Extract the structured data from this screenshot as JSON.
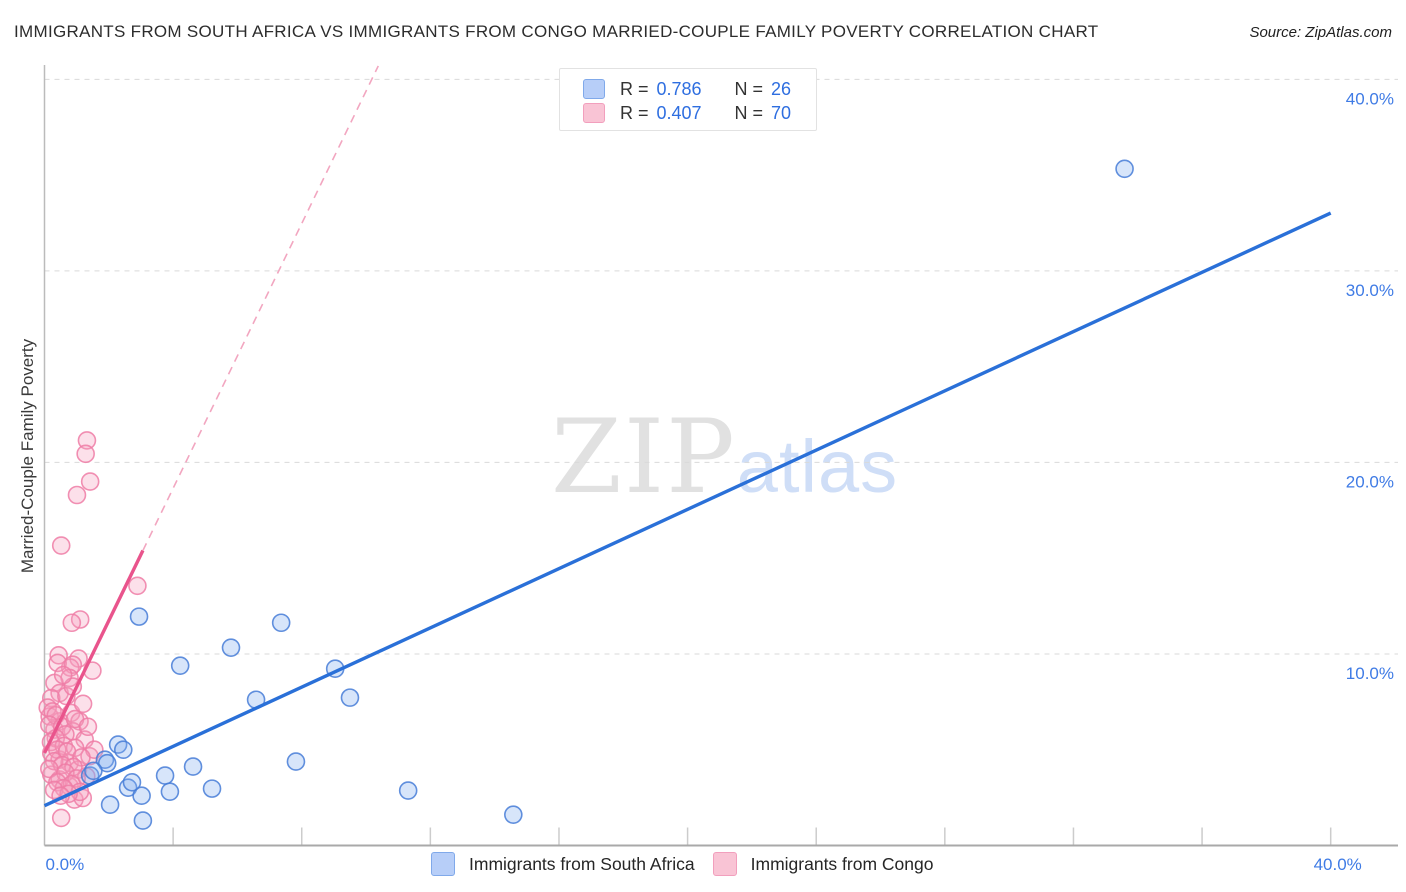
{
  "header": {
    "title": "IMMIGRANTS FROM SOUTH AFRICA VS IMMIGRANTS FROM CONGO MARRIED-COUPLE FAMILY POVERTY CORRELATION CHART",
    "source": "Source: ZipAtlas.com"
  },
  "legend_box": {
    "rows": [
      {
        "series": "south-africa",
        "r_label": "R =",
        "r_value": "0.786",
        "n_label": "N =",
        "n_value": "26"
      },
      {
        "series": "congo",
        "r_label": "R =",
        "r_value": "0.407",
        "n_label": "N =",
        "n_value": "70"
      }
    ]
  },
  "series_legend": [
    {
      "label": "Immigrants from South Africa",
      "color": "#b7cef8"
    },
    {
      "label": "Immigrants from Congo",
      "color": "#f9c4d5"
    }
  ],
  "axes": {
    "y_title": "Married-Couple Family Poverty",
    "x_tick_labels": [
      "0.0%",
      "40.0%"
    ],
    "x_tick_label_values": [
      0,
      40
    ],
    "y_tick_labels": [
      "10.0%",
      "20.0%",
      "30.0%",
      "40.0%"
    ],
    "y_gridline_values": [
      10,
      20,
      30,
      40
    ],
    "x_minor_tick_step": 4
  },
  "watermark": {
    "part1": "ZIP",
    "part2": "atlas"
  },
  "chart_data": {
    "type": "scatter",
    "title": "Immigrants from South Africa vs Immigrants from Congo Married-Couple Family Poverty",
    "xlabel": "",
    "ylabel": "Married-Couple Family Poverty",
    "xlim": [
      0,
      42
    ],
    "ylim": [
      0,
      40.75
    ],
    "grid": "horizontal-dashed",
    "legend_position": "bottom",
    "series": [
      {
        "name": "Immigrants from South Africa",
        "R": 0.786,
        "N": 26,
        "fill": "#82aff0",
        "stroke": "#477dd7",
        "points": [
          [
            1.88,
            4.48
          ],
          [
            2.04,
            2.13
          ],
          [
            2.29,
            5.27
          ],
          [
            2.6,
            3.02
          ],
          [
            2.94,
            11.95
          ],
          [
            3.06,
            1.3
          ],
          [
            3.75,
            3.65
          ],
          [
            3.9,
            2.81
          ],
          [
            4.22,
            9.39
          ],
          [
            4.62,
            4.12
          ],
          [
            5.21,
            2.97
          ],
          [
            5.8,
            10.33
          ],
          [
            6.58,
            7.61
          ],
          [
            7.36,
            11.63
          ],
          [
            7.82,
            4.38
          ],
          [
            9.04,
            9.23
          ],
          [
            9.5,
            7.72
          ],
          [
            11.31,
            2.87
          ],
          [
            14.58,
            1.61
          ],
          [
            33.59,
            35.33
          ],
          [
            1.42,
            3.65
          ],
          [
            1.95,
            4.3
          ],
          [
            2.45,
            5.0
          ],
          [
            3.02,
            2.6
          ],
          [
            1.52,
            3.9
          ],
          [
            2.72,
            3.3
          ]
        ]
      },
      {
        "name": "Immigrants from Congo",
        "R": 0.407,
        "N": 70,
        "fill": "#f59fbe",
        "stroke": "#ee7ca6",
        "points": [
          [
            1.32,
            21.15
          ],
          [
            1.28,
            20.45
          ],
          [
            1.42,
            19.0
          ],
          [
            1.01,
            18.3
          ],
          [
            0.52,
            15.66
          ],
          [
            2.89,
            13.56
          ],
          [
            1.11,
            11.8
          ],
          [
            0.85,
            11.63
          ],
          [
            0.44,
            9.93
          ],
          [
            1.06,
            9.76
          ],
          [
            0.8,
            9.29
          ],
          [
            1.49,
            9.13
          ],
          [
            0.41,
            9.53
          ],
          [
            0.88,
            9.44
          ],
          [
            0.78,
            8.75
          ],
          [
            0.31,
            8.49
          ],
          [
            0.47,
            7.96
          ],
          [
            0.21,
            7.7
          ],
          [
            0.83,
            6.92
          ],
          [
            1.09,
            6.48
          ],
          [
            0.16,
            6.74
          ],
          [
            0.47,
            6.48
          ],
          [
            0.31,
            6.05
          ],
          [
            0.88,
            5.96
          ],
          [
            1.25,
            5.53
          ],
          [
            1.4,
            4.66
          ],
          [
            0.21,
            4.83
          ],
          [
            0.47,
            4.48
          ],
          [
            0.78,
            4.31
          ],
          [
            1.04,
            3.96
          ],
          [
            1.3,
            3.61
          ],
          [
            0.21,
            3.7
          ],
          [
            0.47,
            3.44
          ],
          [
            0.78,
            3.09
          ],
          [
            0.93,
            2.4
          ],
          [
            1.19,
            2.48
          ],
          [
            0.52,
            1.44
          ],
          [
            1.55,
            5.0
          ],
          [
            0.1,
            7.2
          ],
          [
            0.25,
            7.0
          ],
          [
            0.35,
            6.8
          ],
          [
            0.15,
            6.3
          ],
          [
            0.55,
            6.2
          ],
          [
            0.65,
            5.8
          ],
          [
            0.35,
            5.6
          ],
          [
            0.2,
            5.4
          ],
          [
            0.6,
            5.2
          ],
          [
            0.95,
            5.1
          ],
          [
            0.4,
            5.0
          ],
          [
            0.7,
            4.9
          ],
          [
            1.15,
            4.6
          ],
          [
            0.3,
            4.4
          ],
          [
            0.55,
            4.2
          ],
          [
            0.9,
            4.1
          ],
          [
            0.15,
            4.0
          ],
          [
            0.65,
            3.8
          ],
          [
            1.0,
            3.5
          ],
          [
            0.4,
            3.3
          ],
          [
            0.85,
            3.2
          ],
          [
            0.6,
            3.0
          ],
          [
            0.3,
            2.9
          ],
          [
            1.1,
            2.8
          ],
          [
            0.75,
            2.7
          ],
          [
            0.5,
            2.6
          ],
          [
            0.95,
            6.6
          ],
          [
            1.2,
            7.4
          ],
          [
            0.68,
            7.8
          ],
          [
            0.88,
            8.3
          ],
          [
            1.35,
            6.2
          ],
          [
            0.58,
            8.9
          ]
        ]
      }
    ],
    "trend_lines": [
      {
        "series": "Immigrants from South Africa",
        "style": "solid",
        "color": "#2a70d8",
        "x1": 0,
        "y1": 2.08,
        "x2": 40,
        "y2": 33.02
      },
      {
        "series": "Immigrants from Congo",
        "style": "solid",
        "color": "#e9548c",
        "x1": 0,
        "y1": 4.83,
        "x2": 3.06,
        "y2": 15.4
      },
      {
        "series": "Immigrants from Congo",
        "style": "dashed",
        "color": "#f2a6c0",
        "x1": 3.06,
        "y1": 15.4,
        "x2": 10.38,
        "y2": 40.7
      }
    ]
  }
}
